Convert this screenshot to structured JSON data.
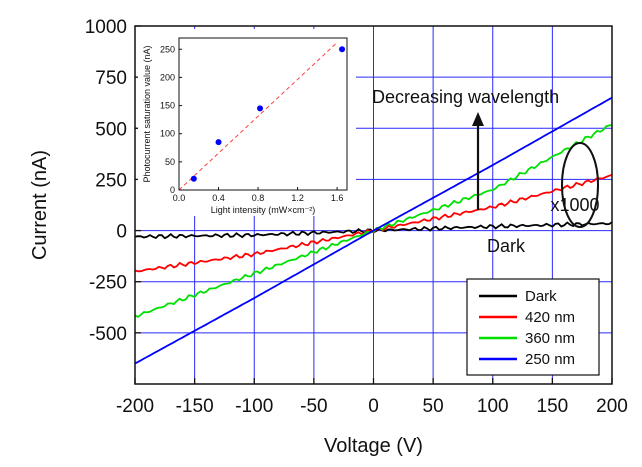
{
  "chart_data": {
    "type": "line",
    "xlabel": "Voltage (V)",
    "ylabel": "Current (nA)",
    "xlim": [
      -200,
      200
    ],
    "ylim": [
      -750,
      1000
    ],
    "x_ticks": [
      -200,
      -150,
      -100,
      -50,
      0,
      50,
      100,
      150,
      200
    ],
    "y_ticks": [
      1000,
      750,
      500,
      250,
      0,
      -250,
      -500
    ],
    "grid": true,
    "legend_position": "bottom-right",
    "series": [
      {
        "name": "Dark",
        "color": "#000000",
        "x": [
          -200,
          -100,
          0,
          100,
          200
        ],
        "values": [
          -30,
          -22,
          0,
          20,
          35
        ]
      },
      {
        "name": "420 nm",
        "color": "#ff0000",
        "x": [
          -200,
          -100,
          0,
          100,
          200
        ],
        "values": [
          -200,
          -115,
          0,
          115,
          270
        ]
      },
      {
        "name": "360 nm",
        "color": "#00e000",
        "x": [
          -200,
          -100,
          0,
          100,
          200
        ],
        "values": [
          -420,
          -210,
          0,
          200,
          520
        ]
      },
      {
        "name": "250 nm",
        "color": "#0000ff",
        "x": [
          -200,
          -100,
          0,
          100,
          200
        ],
        "values": [
          -650,
          -330,
          0,
          320,
          650
        ]
      }
    ],
    "annotations": {
      "wavelength": "Decreasing wavelength",
      "dark": "Dark",
      "scale": "x1000"
    },
    "inset": {
      "type": "scatter",
      "xlabel": "Light intensity (mW×cm⁻²)",
      "ylabel": "Photocurrent saturation value (nA)",
      "xlim": [
        0,
        1.7
      ],
      "ylim": [
        0,
        270
      ],
      "x_ticks": [
        "0.0",
        "0.4",
        "0.8",
        "1.2",
        "1.6"
      ],
      "y_ticks": [
        0,
        50,
        100,
        150,
        200,
        250
      ],
      "points": {
        "x": [
          0.15,
          0.4,
          0.82,
          1.65
        ],
        "y": [
          20,
          85,
          145,
          250
        ]
      },
      "fit": {
        "x": [
          0.0,
          1.6
        ],
        "y": [
          0,
          262
        ]
      },
      "point_color": "#0000ff",
      "fit_color": "#ff4040"
    }
  }
}
